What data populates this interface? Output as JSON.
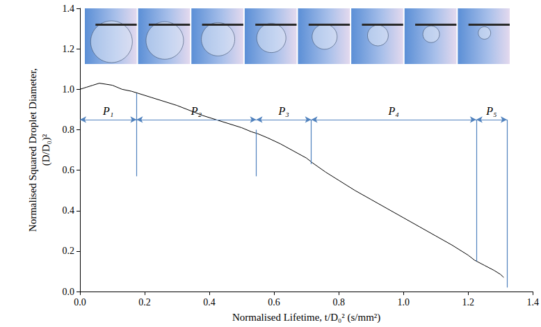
{
  "chart_data": {
    "type": "line",
    "x_label": "Normalised Lifetime, t/D₀² (s/mm²)",
    "y_label": "Normalised Squared Droplet Diameter,\n(D/D₀)²",
    "x": [
      0.0,
      0.02,
      0.04,
      0.06,
      0.08,
      0.1,
      0.13,
      0.16,
      0.18,
      0.22,
      0.26,
      0.3,
      0.34,
      0.38,
      0.42,
      0.46,
      0.5,
      0.53,
      0.55,
      0.58,
      0.62,
      0.66,
      0.7,
      0.72,
      0.76,
      0.8,
      0.85,
      0.9,
      0.95,
      1.0,
      1.05,
      1.1,
      1.15,
      1.2,
      1.22,
      1.25,
      1.28,
      1.3,
      1.31
    ],
    "values": [
      1.0,
      1.01,
      1.02,
      1.03,
      1.025,
      1.02,
      1.0,
      0.99,
      0.98,
      0.96,
      0.94,
      0.92,
      0.895,
      0.87,
      0.85,
      0.83,
      0.81,
      0.79,
      0.78,
      0.76,
      0.73,
      0.695,
      0.66,
      0.635,
      0.59,
      0.55,
      0.5,
      0.455,
      0.41,
      0.365,
      0.32,
      0.275,
      0.23,
      0.18,
      0.155,
      0.13,
      0.105,
      0.085,
      0.07
    ],
    "color": "#000000",
    "xlim": [
      0,
      1.4
    ],
    "ylim": [
      0,
      1.4
    ],
    "xticks": [
      {
        "value": 0,
        "label": "0.0"
      },
      {
        "value": 0.2,
        "label": "0.2"
      },
      {
        "value": 0.4,
        "label": "0.4"
      },
      {
        "value": 0.6,
        "label": "0.6"
      },
      {
        "value": 0.8,
        "label": "0.8"
      },
      {
        "value": 1,
        "label": "1.0"
      },
      {
        "value": 1.2,
        "label": "1.2"
      },
      {
        "value": 1.4,
        "label": "1.4"
      }
    ],
    "yticks": [
      {
        "value": 0,
        "label": "0.0"
      },
      {
        "value": 0.2,
        "label": "0.2"
      },
      {
        "value": 0.4,
        "label": "0.4"
      },
      {
        "value": 0.6,
        "label": "0.6"
      },
      {
        "value": 0.8,
        "label": "0.8"
      },
      {
        "value": 1,
        "label": "1.0"
      },
      {
        "value": 1.2,
        "label": "1.2"
      },
      {
        "value": 1.4,
        "label": "1.4"
      }
    ],
    "grid": false,
    "phases": [
      {
        "label": "P₁",
        "start": 0.0,
        "end": 0.175
      },
      {
        "label": "P₂",
        "start": 0.175,
        "end": 0.545
      },
      {
        "label": "P₃",
        "start": 0.545,
        "end": 0.715
      },
      {
        "label": "P₄",
        "start": 0.715,
        "end": 1.225
      },
      {
        "label": "P₅",
        "start": 1.225,
        "end": 1.32
      }
    ],
    "phase_arrow_y": 0.85,
    "phase_boundaries": [
      {
        "x": 0.175,
        "y_from": 0.98,
        "y_to": 0.57
      },
      {
        "x": 0.545,
        "y_from": 0.8,
        "y_to": 0.57
      },
      {
        "x": 0.715,
        "y_from": 0.85,
        "y_to": 0.63
      },
      {
        "x": 1.225,
        "y_from": 0.85,
        "y_to": 0.15
      },
      {
        "x": 1.32,
        "y_from": 0.85,
        "y_to": 0.02
      }
    ],
    "annotation_color": "#4f81bd"
  }
}
